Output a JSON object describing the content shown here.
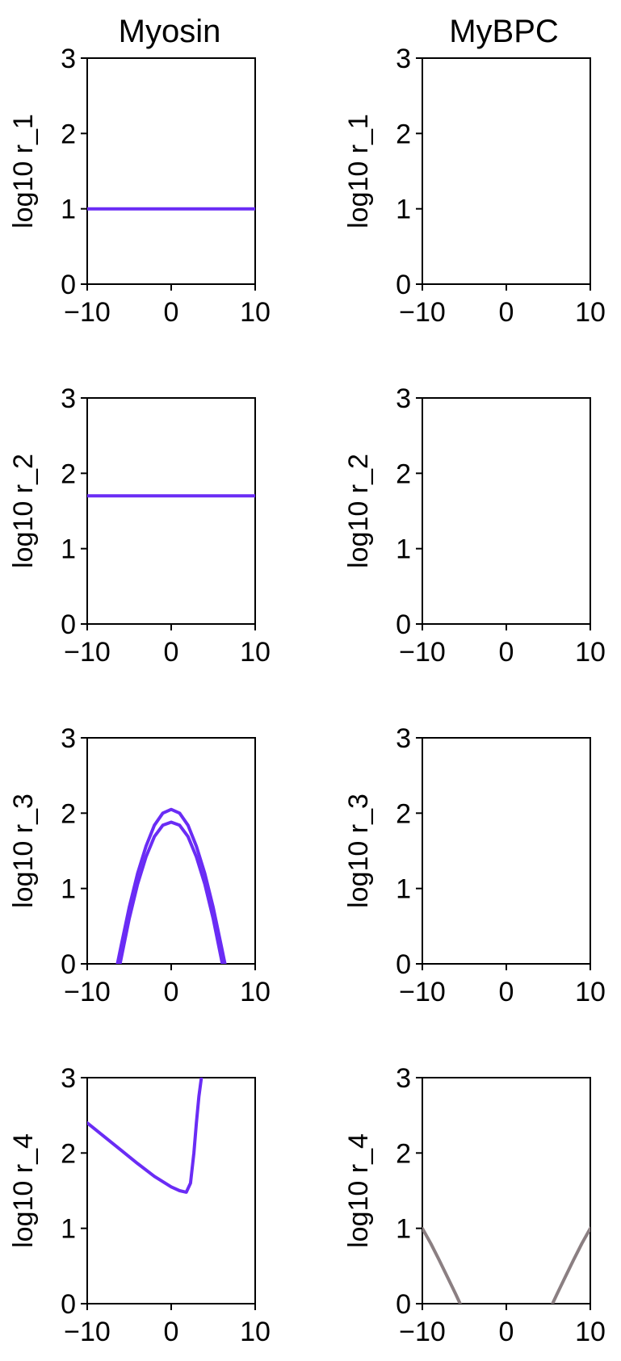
{
  "column_titles": [
    "Myosin",
    "MyBPC"
  ],
  "colors": {
    "myosin": "#6a2cf5",
    "mybpc": "#8b7f82",
    "axes": "#000000"
  },
  "chart_data": [
    {
      "type": "line",
      "panel": "Myosin r_1",
      "ylabel": "log10 r_1",
      "xlim": [
        -10,
        10
      ],
      "ylim": [
        0,
        3
      ],
      "xticks": [
        "−10",
        "0",
        "10"
      ],
      "yticks": [
        "0",
        "1",
        "2",
        "3"
      ],
      "grid": false,
      "color": "#6a2cf5",
      "series": [
        {
          "x": [
            -10,
            10
          ],
          "y": [
            1.0,
            1.0
          ]
        }
      ]
    },
    {
      "type": "line",
      "panel": "MyBPC r_1",
      "ylabel": "log10 r_1",
      "xlim": [
        -10,
        10
      ],
      "ylim": [
        0,
        3
      ],
      "xticks": [
        "−10",
        "0",
        "10"
      ],
      "yticks": [
        "0",
        "1",
        "2",
        "3"
      ],
      "grid": false,
      "color": "#8b7f82",
      "series": []
    },
    {
      "type": "line",
      "panel": "Myosin r_2",
      "ylabel": "log10 r_2",
      "xlim": [
        -10,
        10
      ],
      "ylim": [
        0,
        3
      ],
      "xticks": [
        "−10",
        "0",
        "10"
      ],
      "yticks": [
        "0",
        "1",
        "2",
        "3"
      ],
      "grid": false,
      "color": "#6a2cf5",
      "series": [
        {
          "x": [
            -10,
            10
          ],
          "y": [
            1.7,
            1.7
          ]
        }
      ]
    },
    {
      "type": "line",
      "panel": "MyBPC r_2",
      "ylabel": "log10 r_2",
      "xlim": [
        -10,
        10
      ],
      "ylim": [
        0,
        3
      ],
      "xticks": [
        "−10",
        "0",
        "10"
      ],
      "yticks": [
        "0",
        "1",
        "2",
        "3"
      ],
      "grid": false,
      "color": "#8b7f82",
      "series": []
    },
    {
      "type": "line",
      "panel": "Myosin r_3",
      "ylabel": "log10 r_3",
      "xlim": [
        -10,
        10
      ],
      "ylim": [
        0,
        3
      ],
      "xticks": [
        "−10",
        "0",
        "10"
      ],
      "yticks": [
        "0",
        "1",
        "2",
        "3"
      ],
      "grid": false,
      "color": "#6a2cf5",
      "series": [
        {
          "x": [
            -6.4,
            -6,
            -5,
            -4,
            -3,
            -2,
            -1,
            0,
            1,
            2,
            3,
            4,
            5,
            6,
            6.4
          ],
          "y": [
            0.0,
            0.22,
            0.75,
            1.2,
            1.56,
            1.84,
            2.0,
            2.05,
            2.0,
            1.84,
            1.56,
            1.2,
            0.75,
            0.22,
            0.0
          ]
        },
        {
          "x": [
            -6.1,
            -6,
            -5,
            -4,
            -3,
            -2,
            -1,
            0,
            1,
            2,
            3,
            4,
            5,
            6,
            6.1
          ],
          "y": [
            0.0,
            0.05,
            0.6,
            1.06,
            1.42,
            1.69,
            1.84,
            1.88,
            1.84,
            1.69,
            1.42,
            1.06,
            0.6,
            0.05,
            0.0
          ]
        }
      ]
    },
    {
      "type": "line",
      "panel": "MyBPC r_3",
      "ylabel": "log10 r_3",
      "xlim": [
        -10,
        10
      ],
      "ylim": [
        0,
        3
      ],
      "xticks": [
        "−10",
        "0",
        "10"
      ],
      "yticks": [
        "0",
        "1",
        "2",
        "3"
      ],
      "grid": false,
      "color": "#8b7f82",
      "series": []
    },
    {
      "type": "line",
      "panel": "Myosin r_4",
      "ylabel": "log10 r_4",
      "xlim": [
        -10,
        10
      ],
      "ylim": [
        0,
        3
      ],
      "xticks": [
        "−10",
        "0",
        "10"
      ],
      "yticks": [
        "0",
        "1",
        "2",
        "3"
      ],
      "grid": false,
      "color": "#6a2cf5",
      "series": [
        {
          "x": [
            -10,
            -8,
            -6,
            -4,
            -2,
            0,
            1,
            1.8,
            2.3,
            2.7,
            3.0,
            3.3,
            3.6
          ],
          "y": [
            2.4,
            2.22,
            2.04,
            1.86,
            1.69,
            1.55,
            1.5,
            1.48,
            1.6,
            2.0,
            2.4,
            2.75,
            3.0
          ]
        }
      ]
    },
    {
      "type": "line",
      "panel": "MyBPC r_4",
      "ylabel": "log10 r_4",
      "xlim": [
        -10,
        10
      ],
      "ylim": [
        0,
        3
      ],
      "xticks": [
        "−10",
        "0",
        "10"
      ],
      "yticks": [
        "0",
        "1",
        "2",
        "3"
      ],
      "grid": false,
      "color": "#8b7f82",
      "series": [
        {
          "x": [
            -10,
            -9,
            -8,
            -7,
            -6,
            -5.5
          ],
          "y": [
            1.0,
            0.8,
            0.58,
            0.35,
            0.12,
            0.0
          ]
        },
        {
          "x": [
            5.5,
            6,
            7,
            8,
            9,
            10
          ],
          "y": [
            0.0,
            0.12,
            0.35,
            0.58,
            0.8,
            1.0
          ]
        }
      ]
    }
  ]
}
